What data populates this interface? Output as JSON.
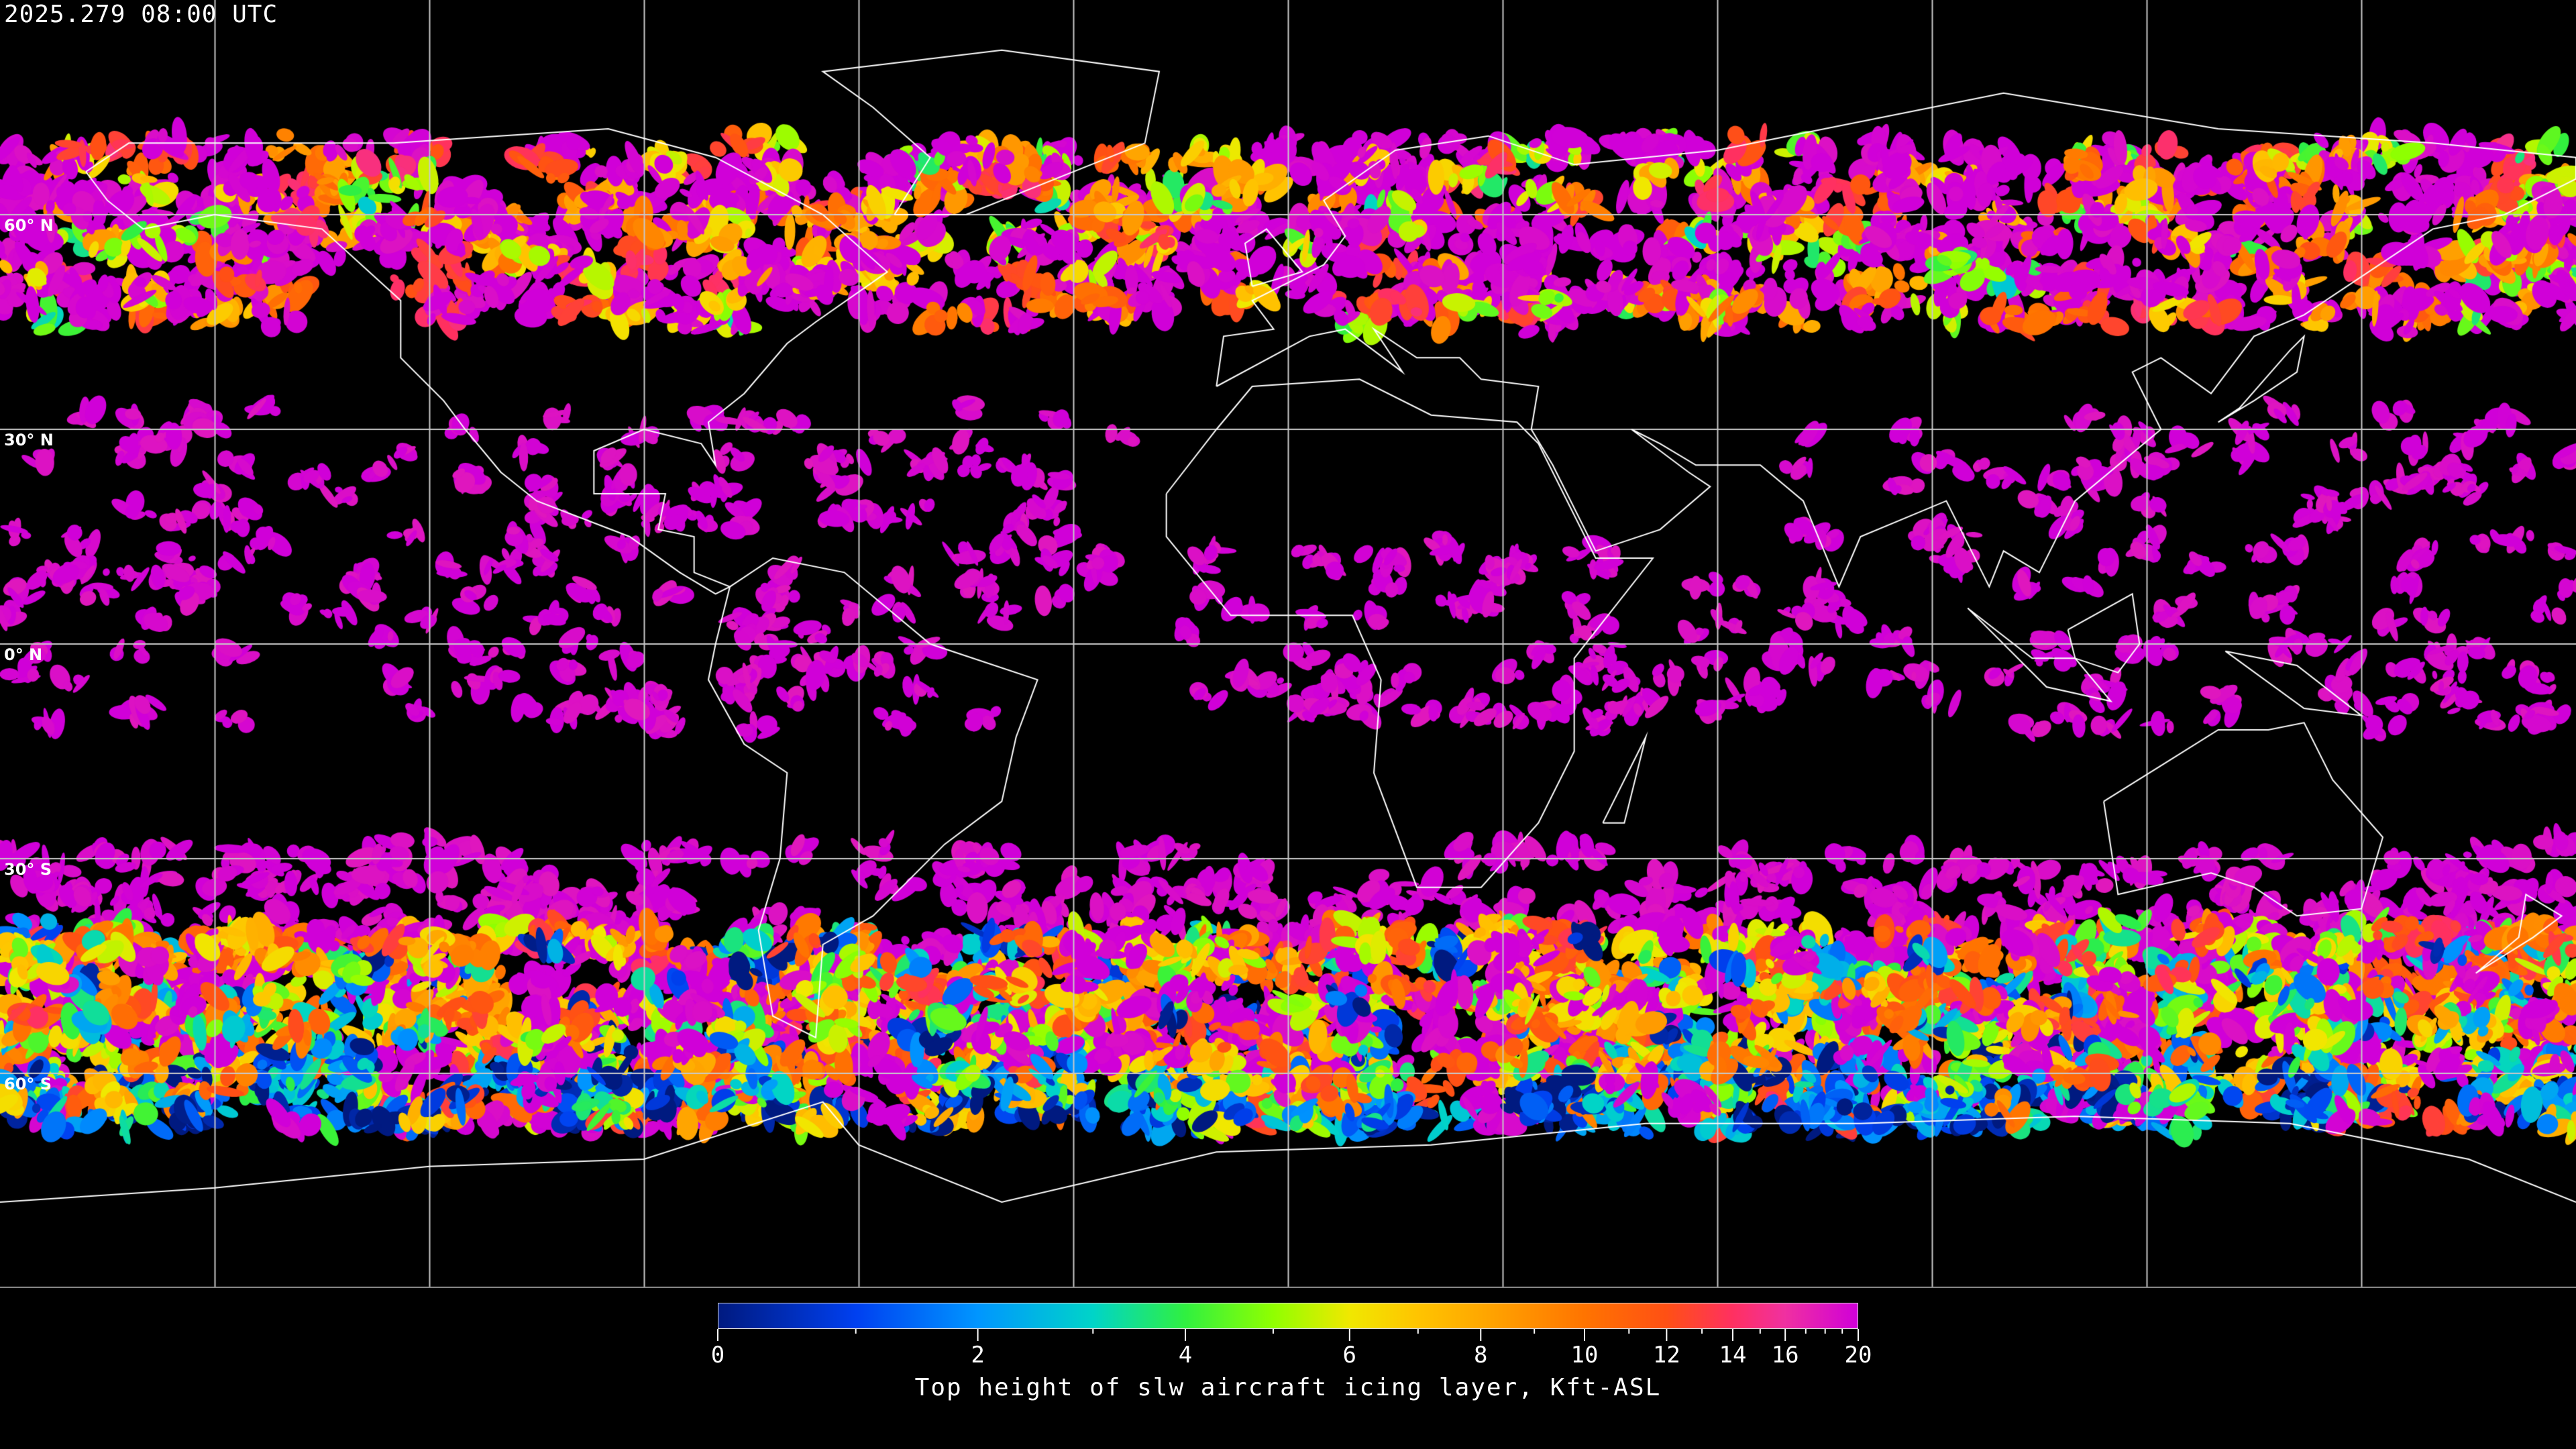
{
  "timestamp": "2025.279 08:00 UTC",
  "latitude_labels": [
    "60° N",
    "30° N",
    "0° N",
    "30° S",
    "60° S"
  ],
  "colorbar": {
    "title": "Top height of slw aircraft icing layer, Kft-ASL",
    "min": 0,
    "max": 20,
    "tick_labels": [
      "0",
      "2",
      "4",
      "6",
      "8",
      "10",
      "12",
      "14",
      "16",
      "20"
    ],
    "minor_ticks": [
      1,
      3,
      5,
      7,
      9,
      11,
      13,
      15,
      17,
      18,
      19
    ],
    "colormap": [
      {
        "value": 0,
        "color": "#001a80"
      },
      {
        "value": 1,
        "color": "#0040f0"
      },
      {
        "value": 2,
        "color": "#0096ff"
      },
      {
        "value": 3,
        "color": "#00d4c8"
      },
      {
        "value": 4,
        "color": "#30f040"
      },
      {
        "value": 5,
        "color": "#90ff00"
      },
      {
        "value": 6,
        "color": "#f0e800"
      },
      {
        "value": 7,
        "color": "#ffc400"
      },
      {
        "value": 8,
        "color": "#ffa800"
      },
      {
        "value": 10,
        "color": "#ff7400"
      },
      {
        "value": 12,
        "color": "#ff5014"
      },
      {
        "value": 14,
        "color": "#ff3060"
      },
      {
        "value": 16,
        "color": "#f030a0"
      },
      {
        "value": 20,
        "color": "#d000d8"
      }
    ]
  },
  "map": {
    "projection": "equirectangular",
    "graticule_step_deg": 30,
    "background": "#000000",
    "coastline_color": "#ffffff",
    "gridline_color": "#c8c8c8"
  }
}
